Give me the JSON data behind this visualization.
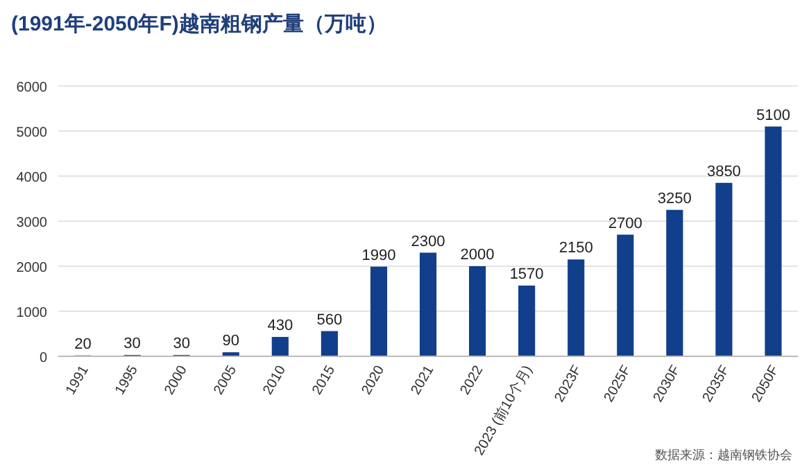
{
  "chart_data": {
    "type": "bar",
    "title": "(1991年-2050年F)越南粗钢产量（万吨）",
    "categories": [
      "1991",
      "1995",
      "2000",
      "2005",
      "2010",
      "2015",
      "2020",
      "2021",
      "2022",
      "2023 (前10个月)",
      "2023F",
      "2025F",
      "2030F",
      "2035F",
      "2050F"
    ],
    "values": [
      20,
      30,
      30,
      90,
      430,
      560,
      1990,
      2300,
      2000,
      1570,
      2150,
      2700,
      3250,
      3850,
      5100
    ],
    "color": "#123f8c",
    "ylim": [
      0,
      6000
    ],
    "yticks": [
      0,
      1000,
      2000,
      3000,
      4000,
      5000,
      6000
    ],
    "grid": "y",
    "data_labels": true,
    "annotations": [
      "数据来源：越南钢铁协会"
    ]
  }
}
